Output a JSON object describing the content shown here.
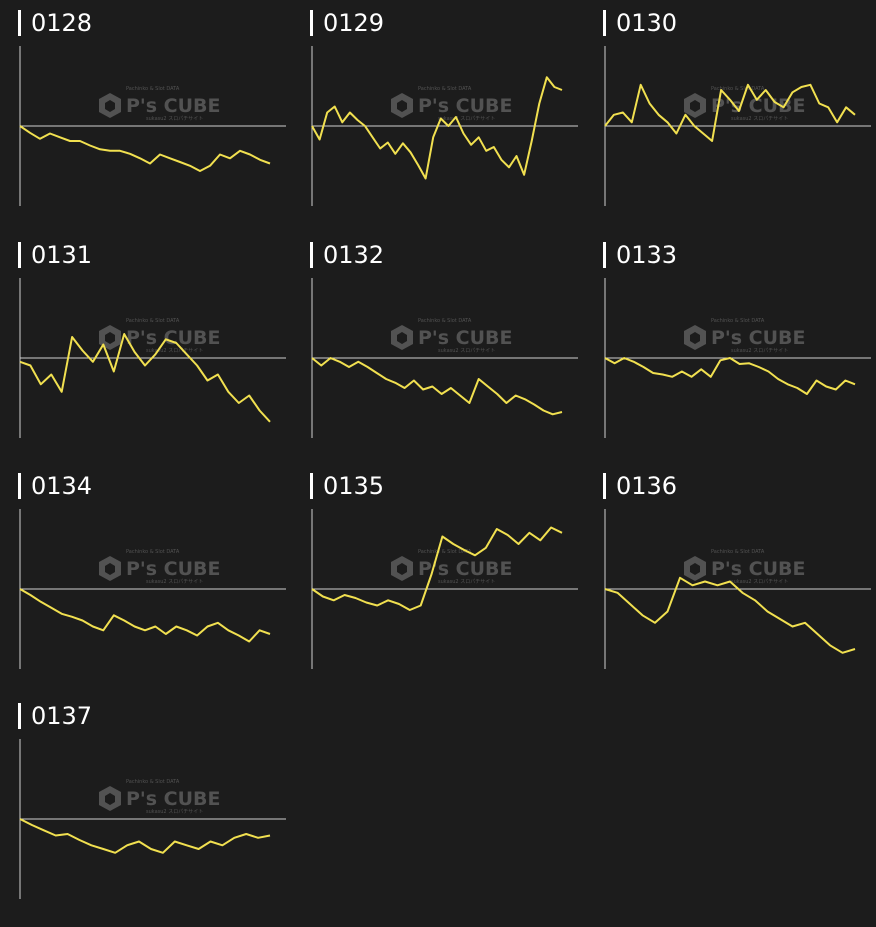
{
  "watermark": {
    "brand": "P's CUBE",
    "top_line": "Pachinko & Slot DATA",
    "bottom_line": "sukasu2 スロパチサイト"
  },
  "colors": {
    "background": "#1c1c1c",
    "axis": "#cfcfcf",
    "line": "#f1e050",
    "label": "#ffffff",
    "watermark": "#5c5c5c"
  },
  "chart_data": [
    {
      "type": "line",
      "title": "0128",
      "ylim": [
        -1,
        1
      ],
      "values": [
        0,
        -0.09,
        -0.17,
        -0.1,
        -0.15,
        -0.2,
        -0.2,
        -0.26,
        -0.31,
        -0.33,
        -0.33,
        -0.37,
        -0.43,
        -0.5,
        -0.38,
        -0.43,
        -0.48,
        -0.53,
        -0.6,
        -0.53,
        -0.38,
        -0.43,
        -0.33,
        -0.38,
        -0.45,
        -0.5
      ]
    },
    {
      "type": "line",
      "title": "0129",
      "ylim": [
        -1,
        1
      ],
      "values": [
        0,
        -0.18,
        0.18,
        0.26,
        0.05,
        0.18,
        0.08,
        0,
        -0.15,
        -0.3,
        -0.22,
        -0.37,
        -0.23,
        -0.35,
        -0.52,
        -0.7,
        -0.15,
        0.1,
        0,
        0.12,
        -0.1,
        -0.25,
        -0.15,
        -0.33,
        -0.28,
        -0.45,
        -0.55,
        -0.4,
        -0.65,
        -0.2,
        0.3,
        0.65,
        0.52,
        0.48
      ]
    },
    {
      "type": "line",
      "title": "0130",
      "ylim": [
        -1,
        1
      ],
      "values": [
        0,
        0.15,
        0.18,
        0.05,
        0.55,
        0.3,
        0.15,
        0.05,
        -0.1,
        0.15,
        0,
        -0.1,
        -0.2,
        0.48,
        0.35,
        0.2,
        0.55,
        0.35,
        0.48,
        0.32,
        0.25,
        0.45,
        0.52,
        0.55,
        0.3,
        0.25,
        0.05,
        0.25,
        0.15
      ]
    },
    {
      "type": "line",
      "title": "0131",
      "ylim": [
        -1,
        1
      ],
      "values": [
        -0.05,
        -0.1,
        -0.35,
        -0.22,
        -0.45,
        0.28,
        0.1,
        -0.05,
        0.18,
        -0.18,
        0.32,
        0.08,
        -0.1,
        0.05,
        0.25,
        0.2,
        0.05,
        -0.1,
        -0.3,
        -0.22,
        -0.45,
        -0.6,
        -0.5,
        -0.7,
        -0.85
      ]
    },
    {
      "type": "line",
      "title": "0132",
      "ylim": [
        -1,
        1
      ],
      "values": [
        0,
        -0.1,
        0,
        -0.05,
        -0.12,
        -0.05,
        -0.12,
        -0.2,
        -0.28,
        -0.33,
        -0.4,
        -0.3,
        -0.42,
        -0.38,
        -0.48,
        -0.4,
        -0.5,
        -0.6,
        -0.28,
        -0.38,
        -0.48,
        -0.6,
        -0.5,
        -0.55,
        -0.62,
        -0.7,
        -0.75,
        -0.72
      ]
    },
    {
      "type": "line",
      "title": "0133",
      "ylim": [
        -1,
        1
      ],
      "values": [
        0,
        -0.07,
        0,
        -0.05,
        -0.12,
        -0.2,
        -0.22,
        -0.25,
        -0.18,
        -0.25,
        -0.15,
        -0.25,
        -0.03,
        0,
        -0.08,
        -0.07,
        -0.12,
        -0.18,
        -0.28,
        -0.35,
        -0.4,
        -0.48,
        -0.3,
        -0.38,
        -0.42,
        -0.3,
        -0.35
      ]
    },
    {
      "type": "line",
      "title": "0134",
      "ylim": [
        -1,
        1
      ],
      "values": [
        0,
        -0.08,
        -0.17,
        -0.25,
        -0.33,
        -0.37,
        -0.42,
        -0.5,
        -0.55,
        -0.35,
        -0.42,
        -0.5,
        -0.55,
        -0.5,
        -0.6,
        -0.5,
        -0.55,
        -0.62,
        -0.5,
        -0.45,
        -0.55,
        -0.62,
        -0.7,
        -0.55,
        -0.6
      ]
    },
    {
      "type": "line",
      "title": "0135",
      "ylim": [
        -1,
        1
      ],
      "values": [
        0,
        -0.1,
        -0.15,
        -0.08,
        -0.12,
        -0.18,
        -0.22,
        -0.15,
        -0.2,
        -0.28,
        -0.22,
        0.2,
        0.7,
        0.6,
        0.52,
        0.45,
        0.55,
        0.8,
        0.72,
        0.6,
        0.75,
        0.65,
        0.82,
        0.75
      ]
    },
    {
      "type": "line",
      "title": "0136",
      "ylim": [
        -1,
        1
      ],
      "values": [
        0,
        -0.05,
        -0.2,
        -0.35,
        -0.45,
        -0.3,
        0.15,
        0.05,
        0.1,
        0.05,
        0.1,
        -0.05,
        -0.15,
        -0.3,
        -0.4,
        -0.5,
        -0.45,
        -0.6,
        -0.75,
        -0.85,
        -0.8
      ]
    },
    {
      "type": "line",
      "title": "0137",
      "ylim": [
        -1,
        1
      ],
      "values": [
        0,
        -0.08,
        -0.15,
        -0.22,
        -0.2,
        -0.28,
        -0.35,
        -0.4,
        -0.45,
        -0.35,
        -0.3,
        -0.4,
        -0.45,
        -0.3,
        -0.35,
        -0.4,
        -0.3,
        -0.35,
        -0.25,
        -0.2,
        -0.25,
        -0.22
      ]
    }
  ]
}
